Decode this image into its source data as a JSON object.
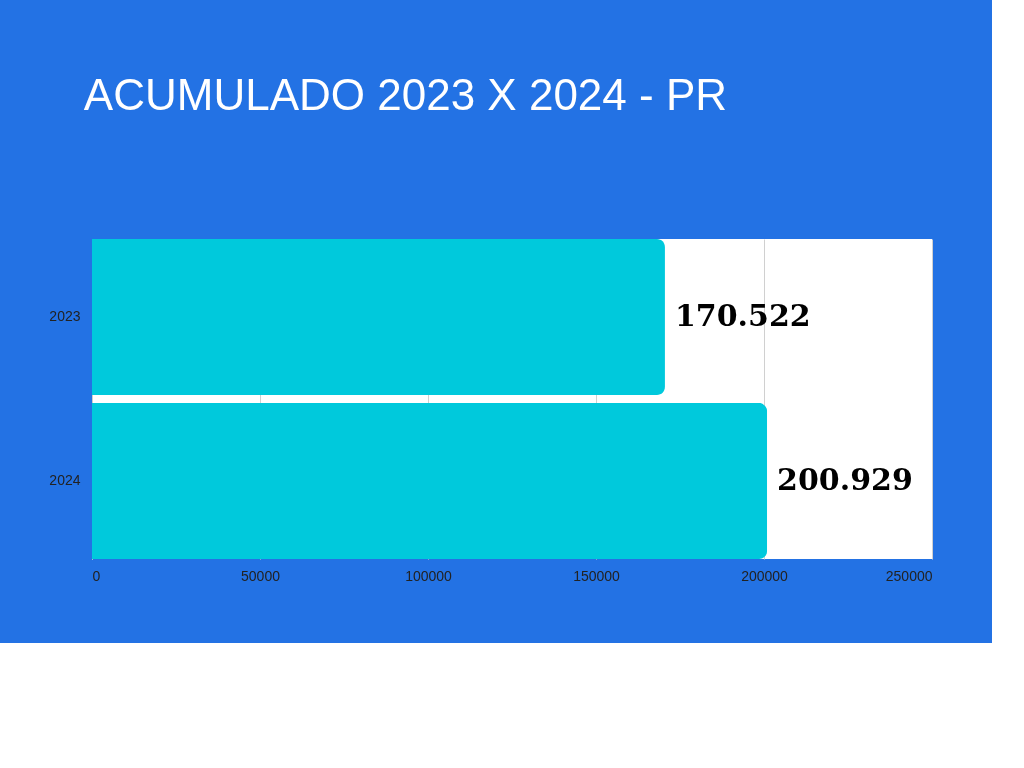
{
  "chart_data": {
    "type": "bar",
    "orientation": "horizontal",
    "title": "ACUMULADO 2023 X 2024 - PR",
    "categories": [
      "2023",
      "2024"
    ],
    "values": [
      170522,
      200929
    ],
    "value_labels": [
      "170.522",
      "200.929"
    ],
    "color": "#00c9dc",
    "xlim": [
      0,
      250000
    ],
    "xticks": [
      0,
      50000,
      100000,
      150000,
      200000,
      250000
    ],
    "grid": "x"
  }
}
